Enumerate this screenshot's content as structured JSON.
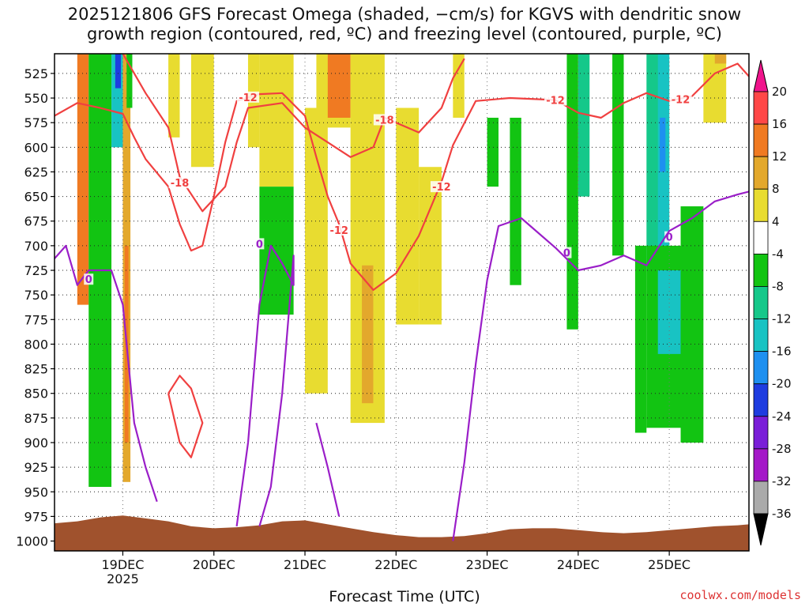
{
  "title_lines": [
    "2025121806 GFS Forecast Omega (shaded, −cm/s) for KGVS with dendritic snow",
    "growth region (contoured, red, ºC) and freezing level (contoured, purple, ºC)"
  ],
  "footer": {
    "xlabel": "Forecast Time (UTC)",
    "credit": "coolwx.com/models"
  },
  "chart_data": {
    "type": "heatmap",
    "x_axis": {
      "label": "Forecast Time (UTC)",
      "range": [
        "2025-12-18T06:00",
        "2025-12-25T21:00"
      ],
      "ticks": [
        {
          "value": "2025-12-19T00:00",
          "label": "19DEC",
          "sublabel": "2025"
        },
        {
          "value": "2025-12-20T00:00",
          "label": "20DEC"
        },
        {
          "value": "2025-12-21T00:00",
          "label": "21DEC"
        },
        {
          "value": "2025-12-22T00:00",
          "label": "22DEC"
        },
        {
          "value": "2025-12-23T00:00",
          "label": "23DEC"
        },
        {
          "value": "2025-12-24T00:00",
          "label": "24DEC"
        },
        {
          "value": "2025-12-25T00:00",
          "label": "25DEC"
        }
      ]
    },
    "y_axis": {
      "unit": "hPa",
      "range": [
        1010,
        505
      ],
      "ticks": [
        525,
        550,
        575,
        600,
        625,
        650,
        675,
        700,
        725,
        750,
        775,
        800,
        825,
        850,
        875,
        900,
        925,
        950,
        975,
        1000
      ],
      "grid": "dotted"
    },
    "colorbar": {
      "levels": [
        20,
        16,
        12,
        8,
        4,
        -4,
        -8,
        -12,
        -16,
        -20,
        -24,
        -28,
        -32,
        -36
      ],
      "colors": [
        "#ff4747",
        "#f07a22",
        "#e3a82c",
        "#e8dc30",
        "#ffffff",
        "#12c412",
        "#15c88a",
        "#18c3c3",
        "#1e90f0",
        "#1e3ce0",
        "#7a1ed8",
        "#a418c8",
        "#aaaaaa"
      ],
      "top_color": "#f0148c",
      "bottom_color": "#000000"
    },
    "terrain_color": "#a0522d",
    "ground_pressure": [
      [
        "2025-12-18T06:00",
        982
      ],
      [
        "2025-12-18T12:00",
        980
      ],
      [
        "2025-12-18T18:00",
        976
      ],
      [
        "2025-12-19T00:00",
        974
      ],
      [
        "2025-12-19T06:00",
        977
      ],
      [
        "2025-12-19T12:00",
        980
      ],
      [
        "2025-12-19T18:00",
        985
      ],
      [
        "2025-12-20T00:00",
        987
      ],
      [
        "2025-12-20T06:00",
        986
      ],
      [
        "2025-12-20T12:00",
        984
      ],
      [
        "2025-12-20T18:00",
        980
      ],
      [
        "2025-12-21T00:00",
        979
      ],
      [
        "2025-12-21T06:00",
        983
      ],
      [
        "2025-12-21T12:00",
        987
      ],
      [
        "2025-12-21T18:00",
        991
      ],
      [
        "2025-12-22T00:00",
        994
      ],
      [
        "2025-12-22T06:00",
        996
      ],
      [
        "2025-12-22T12:00",
        996
      ],
      [
        "2025-12-22T18:00",
        995
      ],
      [
        "2025-12-23T00:00",
        992
      ],
      [
        "2025-12-23T06:00",
        988
      ],
      [
        "2025-12-23T12:00",
        987
      ],
      [
        "2025-12-23T18:00",
        987
      ],
      [
        "2025-12-24T00:00",
        989
      ],
      [
        "2025-12-24T06:00",
        991
      ],
      [
        "2025-12-24T12:00",
        992
      ],
      [
        "2025-12-24T18:00",
        991
      ],
      [
        "2025-12-25T00:00",
        989
      ],
      [
        "2025-12-25T06:00",
        987
      ],
      [
        "2025-12-25T12:00",
        985
      ],
      [
        "2025-12-25T18:00",
        984
      ],
      [
        "2025-12-25T21:00",
        983
      ]
    ],
    "contours": [
      {
        "name": "-12",
        "color": "#f04040",
        "labels": [
          [
            "2025-12-20T09:00",
            549
          ],
          [
            "2025-12-21T09:00",
            684
          ],
          [
            "2025-12-22T12:00",
            640
          ],
          [
            "2025-12-23T18:00",
            552
          ],
          [
            "2025-12-25T03:00",
            551
          ]
        ],
        "points": [
          [
            "2025-12-18T06:00",
            568
          ],
          [
            "2025-12-18T12:00",
            555
          ],
          [
            "2025-12-18T18:00",
            560
          ],
          [
            "2025-12-19T00:00",
            566
          ],
          [
            "2025-12-19T03:00",
            590
          ],
          [
            "2025-12-19T06:00",
            612
          ],
          [
            "2025-12-19T12:00",
            640
          ],
          [
            "2025-12-19T15:00",
            678
          ],
          [
            "2025-12-19T18:00",
            705
          ],
          [
            "2025-12-19T21:00",
            700
          ],
          [
            "2025-12-20T00:00",
            650
          ],
          [
            "2025-12-20T03:00",
            595
          ],
          [
            "2025-12-20T06:00",
            553
          ],
          [
            "2025-12-20T12:00",
            546
          ],
          [
            "2025-12-20T18:00",
            545
          ],
          [
            "2025-12-21T00:00",
            568
          ],
          [
            "2025-12-21T03:00",
            610
          ],
          [
            "2025-12-21T06:00",
            650
          ],
          [
            "2025-12-21T09:00",
            678
          ],
          [
            "2025-12-21T12:00",
            718
          ],
          [
            "2025-12-21T18:00",
            745
          ],
          [
            "2025-12-22T00:00",
            728
          ],
          [
            "2025-12-22T06:00",
            690
          ],
          [
            "2025-12-22T12:00",
            635
          ],
          [
            "2025-12-22T15:00",
            598
          ],
          [
            "2025-12-22T21:00",
            553
          ],
          [
            "2025-12-23T06:00",
            550
          ],
          [
            "2025-12-23T18:00",
            552
          ],
          [
            "2025-12-24T00:00",
            565
          ],
          [
            "2025-12-24T06:00",
            570
          ],
          [
            "2025-12-24T12:00",
            555
          ],
          [
            "2025-12-24T18:00",
            545
          ],
          [
            "2025-12-25T00:00",
            553
          ],
          [
            "2025-12-25T06:00",
            548
          ],
          [
            "2025-12-25T12:00",
            525
          ],
          [
            "2025-12-25T18:00",
            515
          ],
          [
            "2025-12-25T21:00",
            528
          ]
        ]
      },
      {
        "name": "-18",
        "color": "#f04040",
        "labels": [
          [
            "2025-12-19T15:00",
            636
          ],
          [
            "2025-12-21T21:00",
            572
          ]
        ],
        "points": [
          [
            "2025-12-19T00:00",
            505
          ],
          [
            "2025-12-19T06:00",
            545
          ],
          [
            "2025-12-19T12:00",
            580
          ],
          [
            "2025-12-19T15:00",
            630
          ],
          [
            "2025-12-19T21:00",
            665
          ],
          [
            "2025-12-20T03:00",
            640
          ],
          [
            "2025-12-20T06:00",
            595
          ],
          [
            "2025-12-20T09:00",
            560
          ],
          [
            "2025-12-20T18:00",
            555
          ],
          [
            "2025-12-21T00:00",
            580
          ],
          [
            "2025-12-21T06:00",
            595
          ],
          [
            "2025-12-21T12:00",
            610
          ],
          [
            "2025-12-21T18:00",
            600
          ],
          [
            "2025-12-21T21:00",
            570
          ],
          [
            "2025-12-22T06:00",
            585
          ],
          [
            "2025-12-22T12:00",
            560
          ],
          [
            "2025-12-22T15:00",
            530
          ],
          [
            "2025-12-22T18:00",
            510
          ]
        ]
      },
      {
        "name": "-18",
        "color": "#f04040",
        "labels": [],
        "points": [
          [
            "2025-12-19T12:00",
            850
          ],
          [
            "2025-12-19T15:00",
            832
          ],
          [
            "2025-12-19T18:00",
            845
          ],
          [
            "2025-12-19T21:00",
            880
          ],
          [
            "2025-12-19T18:00",
            915
          ],
          [
            "2025-12-19T15:00",
            900
          ],
          [
            "2025-12-19T12:00",
            850
          ]
        ]
      },
      {
        "name": "0",
        "color": "#9a1ec8",
        "labels": [
          [
            "2025-12-18T15:00",
            734
          ],
          [
            "2025-12-20T12:00",
            698
          ],
          [
            "2025-12-23T21:00",
            707
          ],
          [
            "2025-12-25T00:00",
            691
          ]
        ],
        "points": [
          [
            "2025-12-18T06:00",
            713
          ],
          [
            "2025-12-18T09:00",
            700
          ],
          [
            "2025-12-18T12:00",
            740
          ],
          [
            "2025-12-18T15:00",
            725
          ],
          [
            "2025-12-18T21:00",
            725
          ],
          [
            "2025-12-19T00:00",
            760
          ],
          [
            "2025-12-19T03:00",
            880
          ],
          [
            "2025-12-19T06:00",
            925
          ],
          [
            "2025-12-19T09:00",
            960
          ]
        ]
      },
      {
        "name": "0",
        "color": "#9a1ec8",
        "labels": [],
        "points": [
          [
            "2025-12-20T06:00",
            985
          ],
          [
            "2025-12-20T09:00",
            900
          ],
          [
            "2025-12-20T12:00",
            760
          ],
          [
            "2025-12-20T15:00",
            700
          ],
          [
            "2025-12-20T18:00",
            718
          ],
          [
            "2025-12-20T21:00",
            740
          ],
          [
            "2025-12-20T21:00",
            710
          ],
          [
            "2025-12-20T18:00",
            850
          ],
          [
            "2025-12-20T15:00",
            945
          ],
          [
            "2025-12-20T12:00",
            985
          ]
        ]
      },
      {
        "name": "0",
        "color": "#9a1ec8",
        "labels": [],
        "points": [
          [
            "2025-12-21T03:00",
            880
          ],
          [
            "2025-12-21T06:00",
            925
          ],
          [
            "2025-12-21T09:00",
            975
          ]
        ]
      },
      {
        "name": "0",
        "color": "#9a1ec8",
        "labels": [],
        "points": [
          [
            "2025-12-22T15:00",
            1000
          ],
          [
            "2025-12-22T18:00",
            920
          ],
          [
            "2025-12-22T21:00",
            820
          ],
          [
            "2025-12-23T00:00",
            735
          ],
          [
            "2025-12-23T03:00",
            680
          ],
          [
            "2025-12-23T09:00",
            672
          ],
          [
            "2025-12-23T18:00",
            702
          ],
          [
            "2025-12-24T00:00",
            725
          ],
          [
            "2025-12-24T06:00",
            720
          ],
          [
            "2025-12-24T12:00",
            710
          ],
          [
            "2025-12-24T18:00",
            720
          ],
          [
            "2025-12-25T00:00",
            685
          ],
          [
            "2025-12-25T06:00",
            672
          ],
          [
            "2025-12-25T12:00",
            655
          ],
          [
            "2025-12-25T18:00",
            648
          ],
          [
            "2025-12-25T21:00",
            645
          ]
        ]
      }
    ],
    "omega_regions": [
      {
        "start": "2025-12-18T12:00",
        "end": "2025-12-18T15:00",
        "top": 505,
        "bottom": 760,
        "level": 12
      },
      {
        "start": "2025-12-18T15:00",
        "end": "2025-12-18T21:00",
        "top": 505,
        "bottom": 945,
        "level": -4
      },
      {
        "start": "2025-12-18T21:00",
        "end": "2025-12-19T00:00",
        "top": 505,
        "bottom": 600,
        "level": -12
      },
      {
        "start": "2025-12-18T22:00",
        "end": "2025-12-18T23:30",
        "top": 505,
        "bottom": 540,
        "level": -20
      },
      {
        "start": "2025-12-19T00:00",
        "end": "2025-12-19T02:00",
        "top": 505,
        "bottom": 940,
        "level": 8
      },
      {
        "start": "2025-12-19T00:30",
        "end": "2025-12-19T01:30",
        "top": 700,
        "bottom": 900,
        "level": 12
      },
      {
        "start": "2025-12-19T01:00",
        "end": "2025-12-19T02:30",
        "top": 505,
        "bottom": 560,
        "level": -4
      },
      {
        "start": "2025-12-19T12:00",
        "end": "2025-12-19T15:00",
        "top": 505,
        "bottom": 590,
        "level": 4
      },
      {
        "start": "2025-12-19T18:00",
        "end": "2025-12-20T00:00",
        "top": 505,
        "bottom": 620,
        "level": 4
      },
      {
        "start": "2025-12-20T09:00",
        "end": "2025-12-20T12:00",
        "top": 505,
        "bottom": 600,
        "level": 4
      },
      {
        "start": "2025-12-20T12:00",
        "end": "2025-12-20T21:00",
        "top": 505,
        "bottom": 640,
        "level": 4
      },
      {
        "start": "2025-12-20T12:00",
        "end": "2025-12-20T21:00",
        "top": 640,
        "bottom": 770,
        "level": -4
      },
      {
        "start": "2025-12-21T00:00",
        "end": "2025-12-21T06:00",
        "top": 560,
        "bottom": 850,
        "level": 4
      },
      {
        "start": "2025-12-21T03:00",
        "end": "2025-12-21T12:00",
        "top": 505,
        "bottom": 580,
        "level": 4
      },
      {
        "start": "2025-12-21T06:00",
        "end": "2025-12-21T12:00",
        "top": 505,
        "bottom": 570,
        "level": 12
      },
      {
        "start": "2025-12-21T12:00",
        "end": "2025-12-21T21:00",
        "top": 505,
        "bottom": 880,
        "level": 4
      },
      {
        "start": "2025-12-21T15:00",
        "end": "2025-12-21T18:00",
        "top": 720,
        "bottom": 860,
        "level": 8
      },
      {
        "start": "2025-12-22T00:00",
        "end": "2025-12-22T06:00",
        "top": 560,
        "bottom": 780,
        "level": 4
      },
      {
        "start": "2025-12-22T06:00",
        "end": "2025-12-22T12:00",
        "top": 620,
        "bottom": 780,
        "level": 4
      },
      {
        "start": "2025-12-22T15:00",
        "end": "2025-12-22T18:00",
        "top": 505,
        "bottom": 570,
        "level": 4
      },
      {
        "start": "2025-12-23T00:00",
        "end": "2025-12-23T03:00",
        "top": 570,
        "bottom": 640,
        "level": -4
      },
      {
        "start": "2025-12-23T06:00",
        "end": "2025-12-23T09:00",
        "top": 570,
        "bottom": 740,
        "level": -4
      },
      {
        "start": "2025-12-23T21:00",
        "end": "2025-12-24T00:00",
        "top": 505,
        "bottom": 785,
        "level": -4
      },
      {
        "start": "2025-12-24T00:00",
        "end": "2025-12-24T03:00",
        "top": 505,
        "bottom": 650,
        "level": -8
      },
      {
        "start": "2025-12-24T09:00",
        "end": "2025-12-24T12:00",
        "top": 505,
        "bottom": 710,
        "level": -4
      },
      {
        "start": "2025-12-24T15:00",
        "end": "2025-12-24T18:00",
        "top": 700,
        "bottom": 890,
        "level": -4
      },
      {
        "start": "2025-12-24T18:00",
        "end": "2025-12-25T00:00",
        "top": 505,
        "bottom": 725,
        "level": -8
      },
      {
        "start": "2025-12-24T21:00",
        "end": "2025-12-25T00:00",
        "top": 505,
        "bottom": 700,
        "level": -12
      },
      {
        "start": "2025-12-24T21:30",
        "end": "2025-12-24T23:00",
        "top": 570,
        "bottom": 625,
        "level": -16
      },
      {
        "start": "2025-12-24T18:00",
        "end": "2025-12-25T06:00",
        "top": 700,
        "bottom": 885,
        "level": -4
      },
      {
        "start": "2025-12-24T21:00",
        "end": "2025-12-25T03:00",
        "top": 725,
        "bottom": 810,
        "level": -12
      },
      {
        "start": "2025-12-25T03:00",
        "end": "2025-12-25T09:00",
        "top": 660,
        "bottom": 900,
        "level": -4
      },
      {
        "start": "2025-12-25T09:00",
        "end": "2025-12-25T15:00",
        "top": 505,
        "bottom": 575,
        "level": 4
      },
      {
        "start": "2025-12-25T12:00",
        "end": "2025-12-25T15:00",
        "top": 505,
        "bottom": 515,
        "level": 8
      }
    ]
  }
}
